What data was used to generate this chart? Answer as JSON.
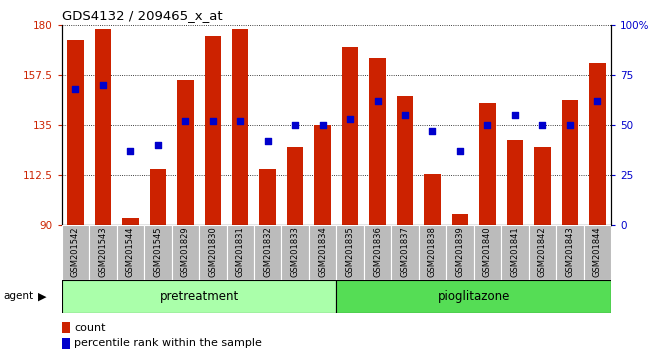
{
  "title": "GDS4132 / 209465_x_at",
  "samples": [
    "GSM201542",
    "GSM201543",
    "GSM201544",
    "GSM201545",
    "GSM201829",
    "GSM201830",
    "GSM201831",
    "GSM201832",
    "GSM201833",
    "GSM201834",
    "GSM201835",
    "GSM201836",
    "GSM201837",
    "GSM201838",
    "GSM201839",
    "GSM201840",
    "GSM201841",
    "GSM201842",
    "GSM201843",
    "GSM201844"
  ],
  "bar_values": [
    173,
    178,
    93,
    115,
    155,
    175,
    178,
    115,
    125,
    135,
    170,
    165,
    148,
    113,
    95,
    145,
    128,
    125,
    146,
    163
  ],
  "percentile_values": [
    68,
    70,
    37,
    40,
    52,
    52,
    52,
    42,
    50,
    50,
    53,
    62,
    55,
    47,
    37,
    50,
    55,
    50,
    50,
    62
  ],
  "group1_label": "pretreatment",
  "group2_label": "pioglitazone",
  "group1_count": 10,
  "group2_count": 10,
  "agent_label": "agent",
  "bar_color": "#cc2200",
  "percentile_color": "#0000cc",
  "group1_bg": "#aaffaa",
  "group2_bg": "#55dd55",
  "xlabels_bg": "#bbbbbb",
  "ylim_left": [
    90,
    180
  ],
  "ylim_right": [
    0,
    100
  ],
  "yticks_left": [
    90,
    112.5,
    135,
    157.5,
    180
  ],
  "yticks_right": [
    0,
    25,
    50,
    75,
    100
  ],
  "ytick_labels_left": [
    "90",
    "112.5",
    "135",
    "157.5",
    "180"
  ],
  "ytick_labels_right": [
    "0",
    "25",
    "50",
    "75",
    "100%"
  ],
  "legend_count_label": "count",
  "legend_pct_label": "percentile rank within the sample"
}
